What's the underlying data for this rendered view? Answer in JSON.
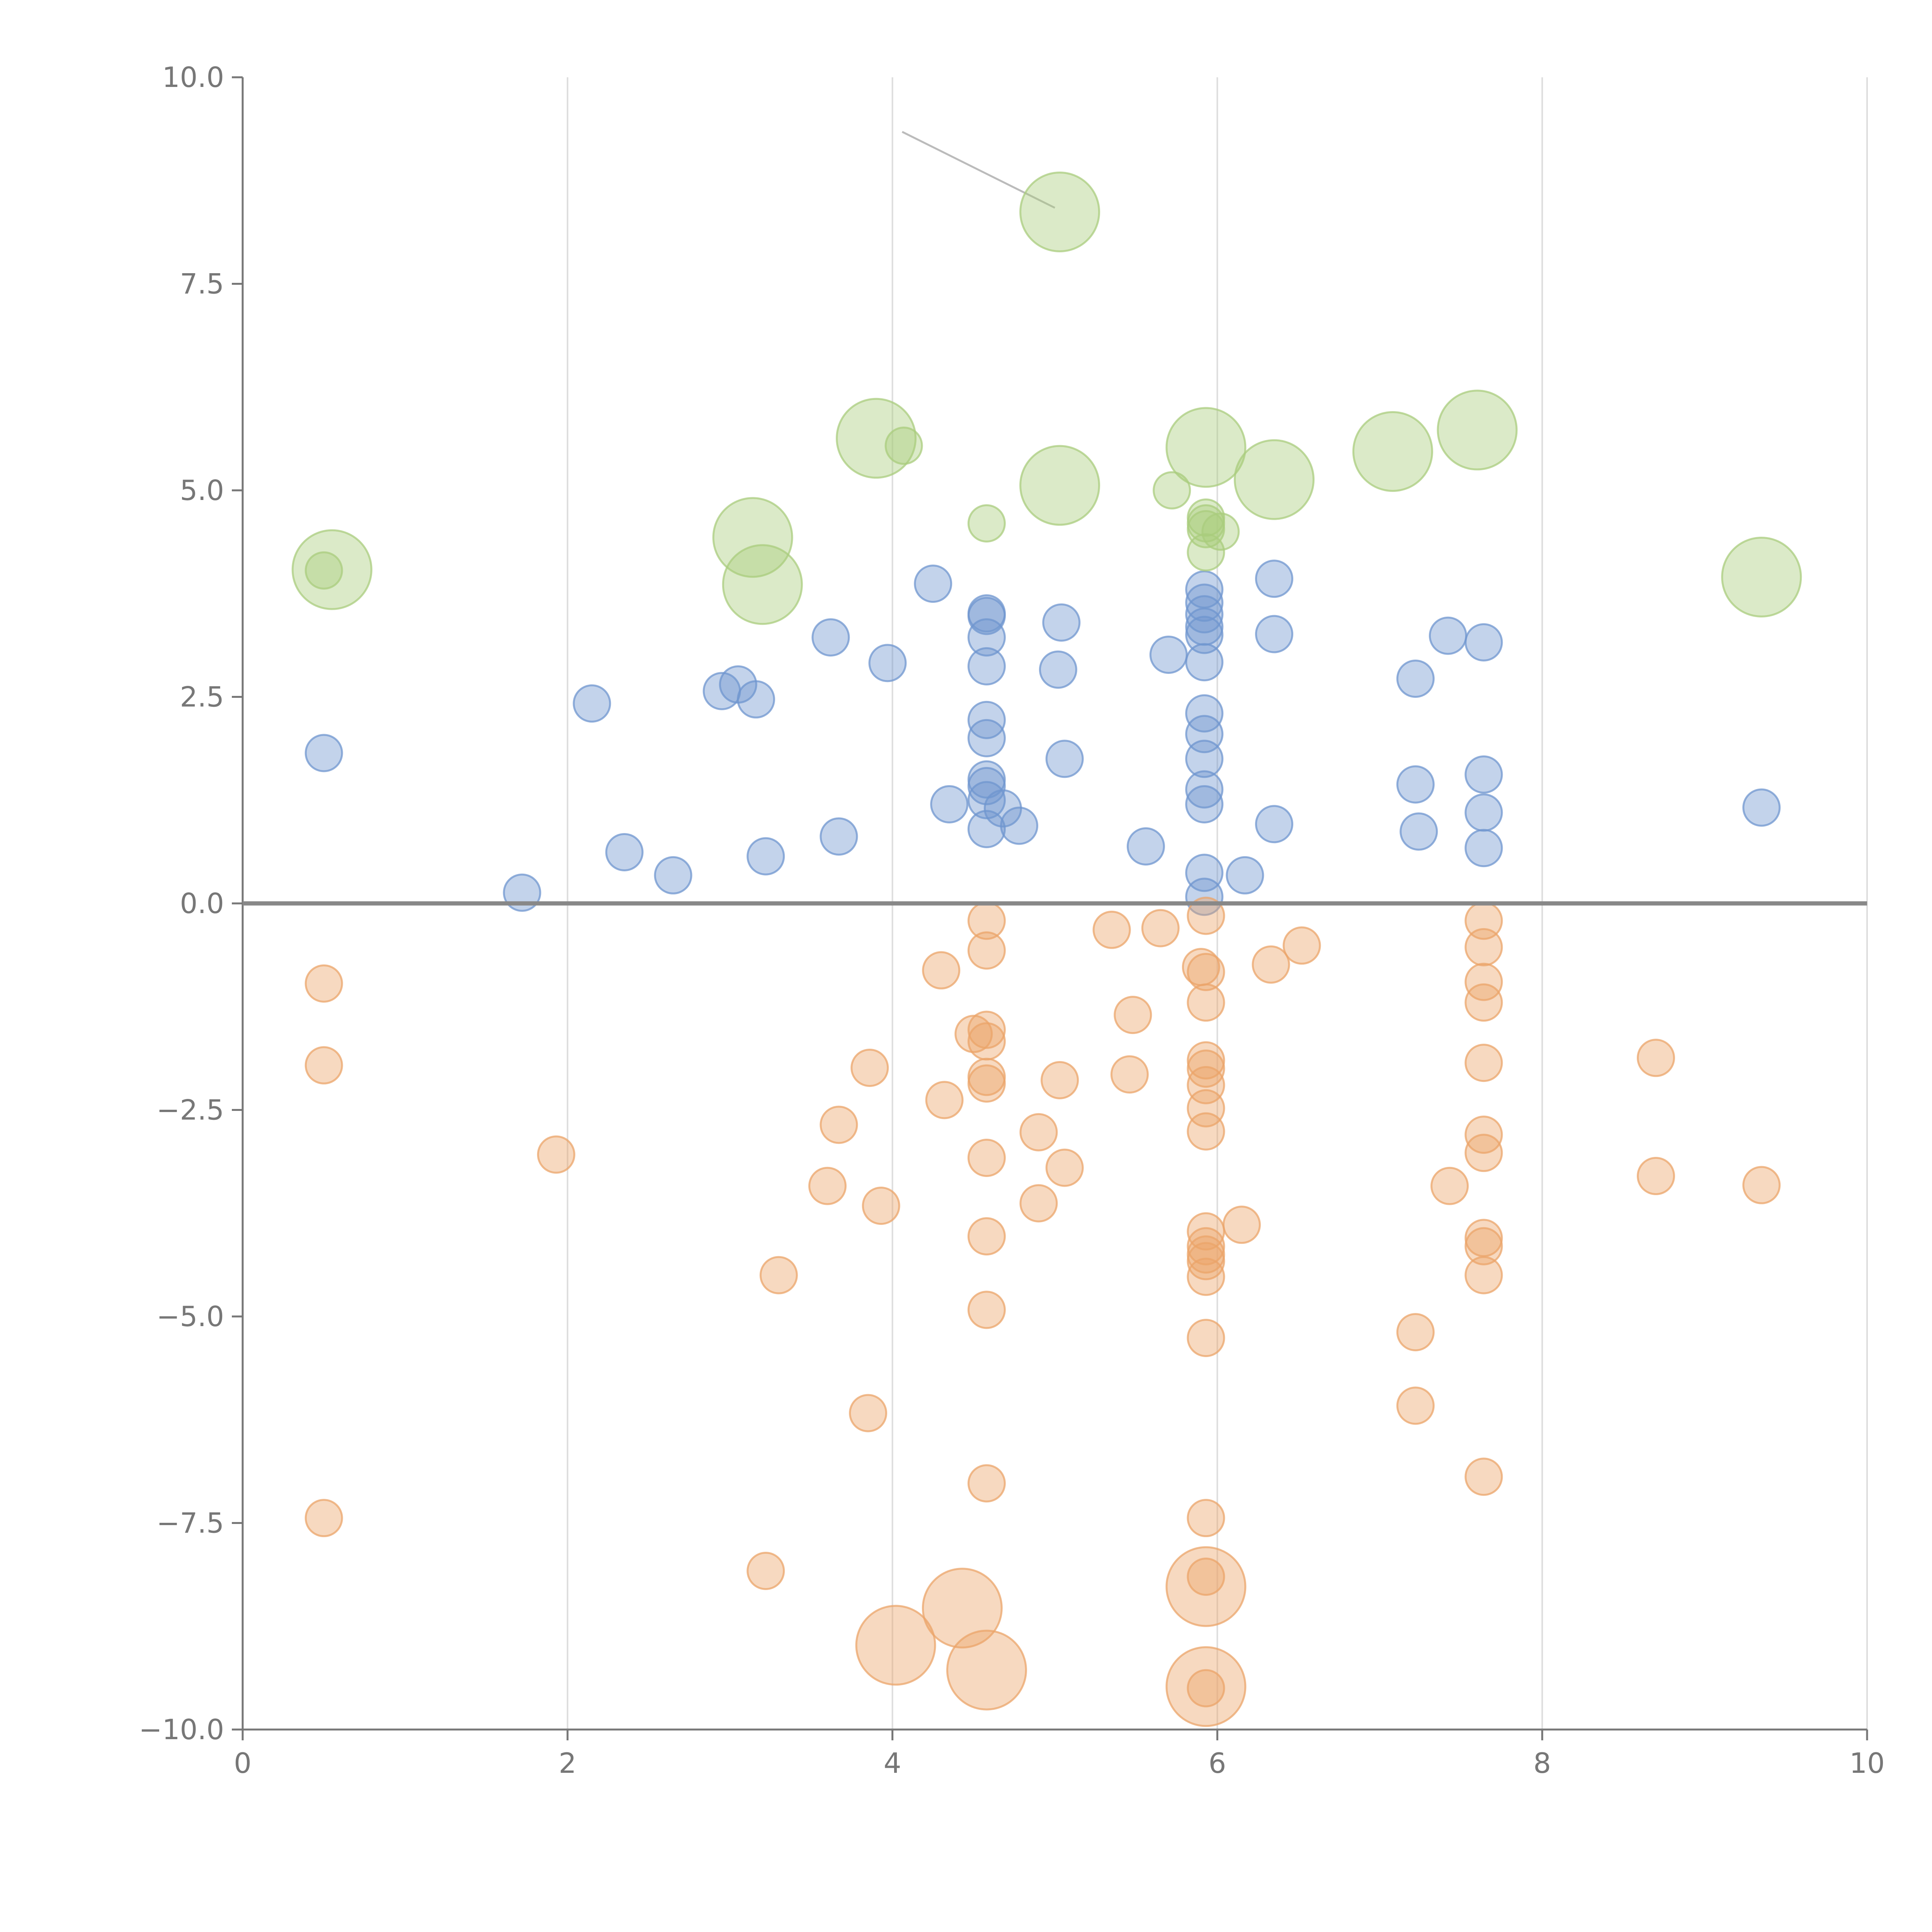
{
  "chart_data": {
    "type": "scatter",
    "title": "",
    "xlabel": "",
    "ylabel": "",
    "xlim": [
      0,
      10
    ],
    "ylim": [
      -10,
      10
    ],
    "xticks": [
      0,
      2,
      4,
      6,
      8,
      10
    ],
    "xtick_labels": [
      "0",
      "2",
      "4",
      "6",
      "8",
      "10"
    ],
    "yticks": [
      10,
      7.5,
      5,
      2.5,
      0,
      -2.5,
      -5,
      -7.5,
      -10
    ],
    "ytick_labels": [
      "10.0",
      "7.5",
      "5.0",
      "2.5",
      "0.0",
      "−2.5",
      "−5.0",
      "−7.5",
      "−10.0"
    ],
    "grid": "vertical",
    "colors": {
      "positive": "#6f95cf",
      "negative": "#eba46a",
      "highlight": "#a9cc7d",
      "axis": "#777777",
      "zero_line": "#888888",
      "leader_line": "#bbbbbb"
    },
    "series": [
      {
        "name": "positive",
        "size": "small",
        "points": [
          [
            0.5,
            1.82
          ],
          [
            1.72,
            0.13
          ],
          [
            2.15,
            2.42
          ],
          [
            2.35,
            0.62
          ],
          [
            2.65,
            0.34
          ],
          [
            2.95,
            2.57
          ],
          [
            3.05,
            2.65
          ],
          [
            3.16,
            2.47
          ],
          [
            3.22,
            0.57
          ],
          [
            3.62,
            3.22
          ],
          [
            3.67,
            0.81
          ],
          [
            3.97,
            2.91
          ],
          [
            4.25,
            3.87
          ],
          [
            4.35,
            1.2
          ],
          [
            4.58,
            3.51
          ],
          [
            4.58,
            3.48
          ],
          [
            4.58,
            3.22
          ],
          [
            4.58,
            2.87
          ],
          [
            4.58,
            2.22
          ],
          [
            4.58,
            2.0
          ],
          [
            4.58,
            1.5
          ],
          [
            4.58,
            1.42
          ],
          [
            4.58,
            1.25
          ],
          [
            4.58,
            0.9
          ],
          [
            4.68,
            1.15
          ],
          [
            4.78,
            0.94
          ],
          [
            5.02,
            2.83
          ],
          [
            5.04,
            3.4
          ],
          [
            5.06,
            1.75
          ],
          [
            5.56,
            0.69
          ],
          [
            5.7,
            3.01
          ],
          [
            5.92,
            3.8
          ],
          [
            5.92,
            3.64
          ],
          [
            5.92,
            3.5
          ],
          [
            5.92,
            3.35
          ],
          [
            5.92,
            3.25
          ],
          [
            5.92,
            2.92
          ],
          [
            5.92,
            2.3
          ],
          [
            5.92,
            2.05
          ],
          [
            5.92,
            1.75
          ],
          [
            5.92,
            1.38
          ],
          [
            5.92,
            1.2
          ],
          [
            5.92,
            0.37
          ],
          [
            5.92,
            0.08
          ],
          [
            6.17,
            0.34
          ],
          [
            6.35,
            3.93
          ],
          [
            6.35,
            3.26
          ],
          [
            6.35,
            0.96
          ],
          [
            7.22,
            2.72
          ],
          [
            7.22,
            1.44
          ],
          [
            7.24,
            0.87
          ],
          [
            7.42,
            3.24
          ],
          [
            7.64,
            3.16
          ],
          [
            7.64,
            1.56
          ],
          [
            7.64,
            1.1
          ],
          [
            7.64,
            0.67
          ],
          [
            9.35,
            1.16
          ]
        ]
      },
      {
        "name": "negative",
        "size": "small",
        "points": [
          [
            0.5,
            -0.97
          ],
          [
            0.5,
            -1.96
          ],
          [
            0.5,
            -7.44
          ],
          [
            1.93,
            -3.04
          ],
          [
            3.3,
            -4.5
          ],
          [
            3.22,
            -8.08
          ],
          [
            3.6,
            -3.42
          ],
          [
            3.67,
            -2.68
          ],
          [
            3.86,
            -1.99
          ],
          [
            3.85,
            -6.17
          ],
          [
            3.93,
            -3.66
          ],
          [
            4.3,
            -0.81
          ],
          [
            4.32,
            -2.38
          ],
          [
            4.5,
            -1.58
          ],
          [
            4.58,
            -0.21
          ],
          [
            4.58,
            -0.57
          ],
          [
            4.58,
            -1.53
          ],
          [
            4.58,
            -1.67
          ],
          [
            4.58,
            -2.1
          ],
          [
            4.58,
            -2.18
          ],
          [
            4.58,
            -3.08
          ],
          [
            4.58,
            -4.03
          ],
          [
            4.58,
            -4.92
          ],
          [
            4.58,
            -7.02
          ],
          [
            4.9,
            -2.77
          ],
          [
            4.9,
            -3.63
          ],
          [
            5.03,
            -2.14
          ],
          [
            5.06,
            -3.2
          ],
          [
            5.35,
            -0.32
          ],
          [
            5.46,
            -2.07
          ],
          [
            5.48,
            -1.35
          ],
          [
            5.65,
            -0.3
          ],
          [
            5.9,
            -0.77
          ],
          [
            5.93,
            -0.15
          ],
          [
            5.93,
            -0.83
          ],
          [
            5.93,
            -1.2
          ],
          [
            5.93,
            -1.9
          ],
          [
            5.93,
            -2.0
          ],
          [
            5.93,
            -2.2
          ],
          [
            5.93,
            -2.48
          ],
          [
            5.93,
            -2.76
          ],
          [
            5.93,
            -3.97
          ],
          [
            5.93,
            -4.15
          ],
          [
            5.93,
            -4.25
          ],
          [
            5.93,
            -4.33
          ],
          [
            5.93,
            -4.52
          ],
          [
            5.93,
            -5.26
          ],
          [
            5.93,
            -7.44
          ],
          [
            5.93,
            -8.15
          ],
          [
            5.93,
            -9.5
          ],
          [
            6.15,
            -3.89
          ],
          [
            6.33,
            -0.74
          ],
          [
            6.52,
            -0.51
          ],
          [
            7.22,
            -5.19
          ],
          [
            7.22,
            -6.08
          ],
          [
            7.43,
            -3.42
          ],
          [
            7.64,
            -0.21
          ],
          [
            7.64,
            -0.53
          ],
          [
            7.64,
            -0.95
          ],
          [
            7.64,
            -1.2
          ],
          [
            7.64,
            -1.93
          ],
          [
            7.64,
            -2.8
          ],
          [
            7.64,
            -3.02
          ],
          [
            7.64,
            -4.05
          ],
          [
            7.64,
            -4.15
          ],
          [
            7.64,
            -4.5
          ],
          [
            7.64,
            -6.94
          ],
          [
            8.7,
            -1.87
          ],
          [
            8.7,
            -3.3
          ],
          [
            9.35,
            -3.41
          ]
        ]
      },
      {
        "name": "negative-large",
        "size": "large",
        "points": [
          [
            4.02,
            -8.98
          ],
          [
            4.43,
            -8.53
          ],
          [
            4.58,
            -9.28
          ],
          [
            5.93,
            -8.27
          ],
          [
            5.93,
            -9.48
          ]
        ]
      },
      {
        "name": "highlight-large",
        "size": "large",
        "points": [
          [
            0.55,
            4.04
          ],
          [
            3.14,
            4.43
          ],
          [
            3.2,
            3.86
          ],
          [
            3.9,
            5.63
          ],
          [
            5.03,
            8.37
          ],
          [
            5.03,
            5.06
          ],
          [
            5.93,
            5.52
          ],
          [
            6.35,
            5.13
          ],
          [
            7.08,
            5.47
          ],
          [
            7.6,
            5.73
          ],
          [
            9.35,
            3.95
          ]
        ]
      },
      {
        "name": "highlight-small",
        "size": "small",
        "points": [
          [
            0.5,
            4.03
          ],
          [
            4.07,
            5.54
          ],
          [
            4.58,
            4.6
          ],
          [
            5.72,
            5.0
          ],
          [
            5.93,
            4.67
          ],
          [
            5.93,
            4.6
          ],
          [
            5.93,
            4.53
          ],
          [
            5.93,
            4.25
          ],
          [
            6.02,
            4.5
          ]
        ]
      }
    ],
    "leader_lines": [
      [
        [
          4.06,
          9.34
        ],
        [
          5.0,
          8.42
        ]
      ]
    ]
  }
}
